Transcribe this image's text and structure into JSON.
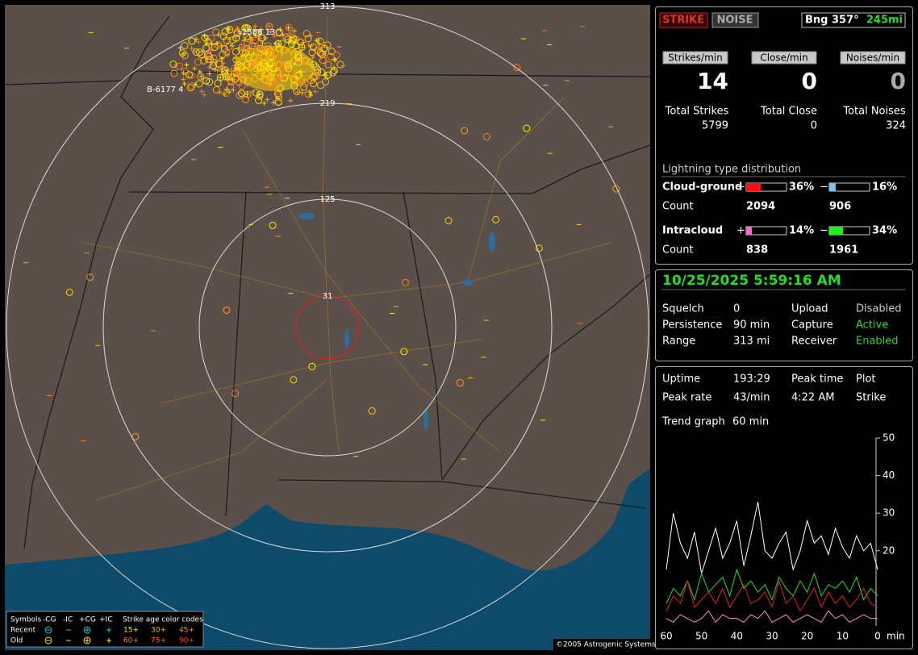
{
  "map": {
    "ring_labels": [
      "313",
      "219",
      "125",
      "31"
    ],
    "storm_labels": [
      "B-6177  4",
      "2588  13"
    ],
    "copyright": "©2005 Astrogenic Systems",
    "legend": {
      "symbols": "Symbols",
      "columns": [
        "-CG",
        "-IC",
        "+CG",
        "+IC"
      ],
      "age_title": "Strike age color codes",
      "recent": "Recent",
      "old": "Old",
      "recent_codes": [
        "15+",
        "30+",
        "45+"
      ],
      "old_codes": [
        "60+",
        "75+",
        "90+"
      ]
    }
  },
  "status": {
    "strike": "STRIKE",
    "noise": "NOISE",
    "bearing": "Bng 357°",
    "distance": "245mi"
  },
  "rates": {
    "buttons": [
      "Strikes/min",
      "Close/min",
      "Noises/min"
    ],
    "values": [
      14,
      0,
      0
    ],
    "total_labels": [
      "Total Strikes",
      "Total Close",
      "Total Noises"
    ],
    "totals": [
      5799,
      0,
      324
    ]
  },
  "distribution": {
    "title": "Lightning type distribution",
    "count_label": "Count",
    "rows": [
      {
        "label": "Cloud-ground",
        "pos_sign": "+",
        "neg_sign": "−",
        "pos_percent": 36,
        "pos_percent_label": "36%",
        "neg_percent": 16,
        "neg_percent_label": "16%",
        "pos_count": 2094,
        "neg_count": 906
      },
      {
        "label": "Intracloud",
        "pos_sign": "+",
        "neg_sign": "−",
        "pos_percent": 14,
        "pos_percent_label": "14%",
        "neg_percent": 34,
        "neg_percent_label": "34%",
        "pos_count": 838,
        "neg_count": 1961
      }
    ]
  },
  "settings": {
    "datetime": "10/25/2025 5:59:16 AM",
    "rows": [
      [
        "Squelch",
        "0",
        "Upload",
        "Disabled"
      ],
      [
        "Persistence",
        "90 min",
        "Capture",
        "Active"
      ],
      [
        "Range",
        "313 mi",
        "Receiver",
        "Enabled"
      ]
    ]
  },
  "stats": {
    "rows": [
      [
        "Uptime",
        "193:29",
        "Peak time",
        "Plot"
      ],
      [
        "Peak rate",
        "43/min",
        "4:22 AM",
        "Strike"
      ]
    ],
    "trend_label": "Trend graph",
    "trend_value": "60 min"
  },
  "trend_chart": {
    "type": "line",
    "x_unit": "min",
    "x": [
      60,
      58,
      56,
      54,
      52,
      50,
      48,
      46,
      44,
      42,
      40,
      38,
      36,
      34,
      32,
      30,
      28,
      26,
      24,
      22,
      20,
      18,
      16,
      14,
      12,
      10,
      8,
      6,
      4,
      2,
      0
    ],
    "xlim": [
      60,
      0
    ],
    "xticks": [
      60,
      50,
      40,
      30,
      20,
      10,
      0
    ],
    "ylim": [
      0,
      50
    ],
    "yticks": [
      50,
      40,
      30,
      20
    ],
    "series": [
      {
        "color": "#ffffff",
        "values": [
          15,
          30,
          22,
          18,
          25,
          14,
          20,
          26,
          18,
          22,
          28,
          16,
          24,
          33,
          20,
          18,
          22,
          25,
          15,
          20,
          28,
          22,
          24,
          19,
          26,
          21,
          18,
          24,
          20,
          22,
          15
        ]
      },
      {
        "color": "#22dd22",
        "values": [
          6,
          10,
          8,
          12,
          7,
          14,
          9,
          11,
          13,
          8,
          15,
          10,
          12,
          9,
          11,
          7,
          13,
          10,
          8,
          12,
          9,
          14,
          8,
          11,
          10,
          12,
          9,
          13,
          7,
          10,
          8
        ]
      },
      {
        "color": "#e02020",
        "values": [
          4,
          8,
          6,
          12,
          5,
          7,
          9,
          6,
          10,
          5,
          8,
          11,
          6,
          7,
          9,
          5,
          12,
          6,
          8,
          4,
          7,
          10,
          5,
          9,
          6,
          8,
          5,
          7,
          10,
          6,
          5
        ]
      },
      {
        "color": "#ff88cc",
        "values": [
          2,
          1,
          3,
          2,
          1,
          2,
          4,
          1,
          3,
          2,
          2,
          1,
          3,
          2,
          4,
          1,
          2,
          3,
          1,
          2,
          3,
          2,
          1,
          4,
          2,
          3,
          1,
          2,
          3,
          2,
          2
        ]
      }
    ]
  }
}
